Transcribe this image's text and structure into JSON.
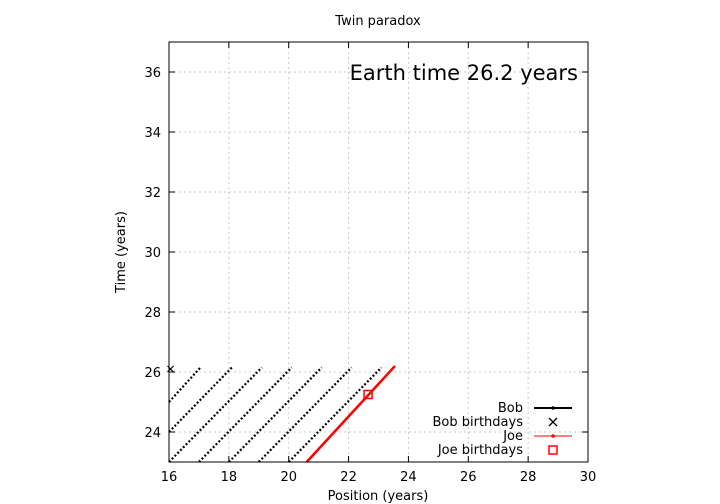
{
  "chart_data": {
    "type": "line",
    "title": "Twin paradox",
    "xlabel": "Position (years)",
    "ylabel": "Time (years)",
    "xlim": [
      16,
      30
    ],
    "ylim": [
      23,
      37
    ],
    "xticks": [
      16,
      18,
      20,
      22,
      24,
      26,
      28,
      30
    ],
    "yticks": [
      24,
      26,
      28,
      30,
      32,
      34,
      36
    ],
    "grid": true,
    "annotation": "Earth time 26.2 years",
    "legend_position": "bottom-right",
    "legend": [
      {
        "label": "Bob",
        "style": "line-point",
        "color": "#000000"
      },
      {
        "label": "Bob birthdays",
        "style": "cross",
        "color": "#000000"
      },
      {
        "label": "Joe",
        "style": "line-point",
        "color": "#ff0000"
      },
      {
        "label": "Joe birthdays",
        "style": "square",
        "color": "#ff0000"
      }
    ],
    "bob_segments": [
      {
        "x": [
          16.0,
          17.05
        ],
        "y": [
          25.0,
          26.15
        ]
      },
      {
        "x": [
          16.0,
          18.1
        ],
        "y": [
          24.0,
          26.15
        ]
      },
      {
        "x": [
          16.0,
          19.1
        ],
        "y": [
          23.0,
          26.15
        ]
      },
      {
        "x": [
          17.0,
          20.1
        ],
        "y": [
          23.0,
          26.15
        ]
      },
      {
        "x": [
          18.0,
          21.1
        ],
        "y": [
          23.0,
          26.15
        ]
      },
      {
        "x": [
          19.0,
          22.1
        ],
        "y": [
          23.0,
          26.15
        ]
      },
      {
        "x": [
          20.0,
          23.1
        ],
        "y": [
          23.0,
          26.15
        ]
      }
    ],
    "bob_birthdays": [
      {
        "x": 16.05,
        "y": 26.1
      }
    ],
    "joe": {
      "x": [
        20.6,
        23.55
      ],
      "y": [
        23.0,
        26.2
      ]
    },
    "joe_birthdays": [
      {
        "x": 22.65,
        "y": 25.25
      }
    ],
    "colors": {
      "bob": "#000000",
      "joe": "#ff0000",
      "grid": "#c8c8c8"
    }
  }
}
